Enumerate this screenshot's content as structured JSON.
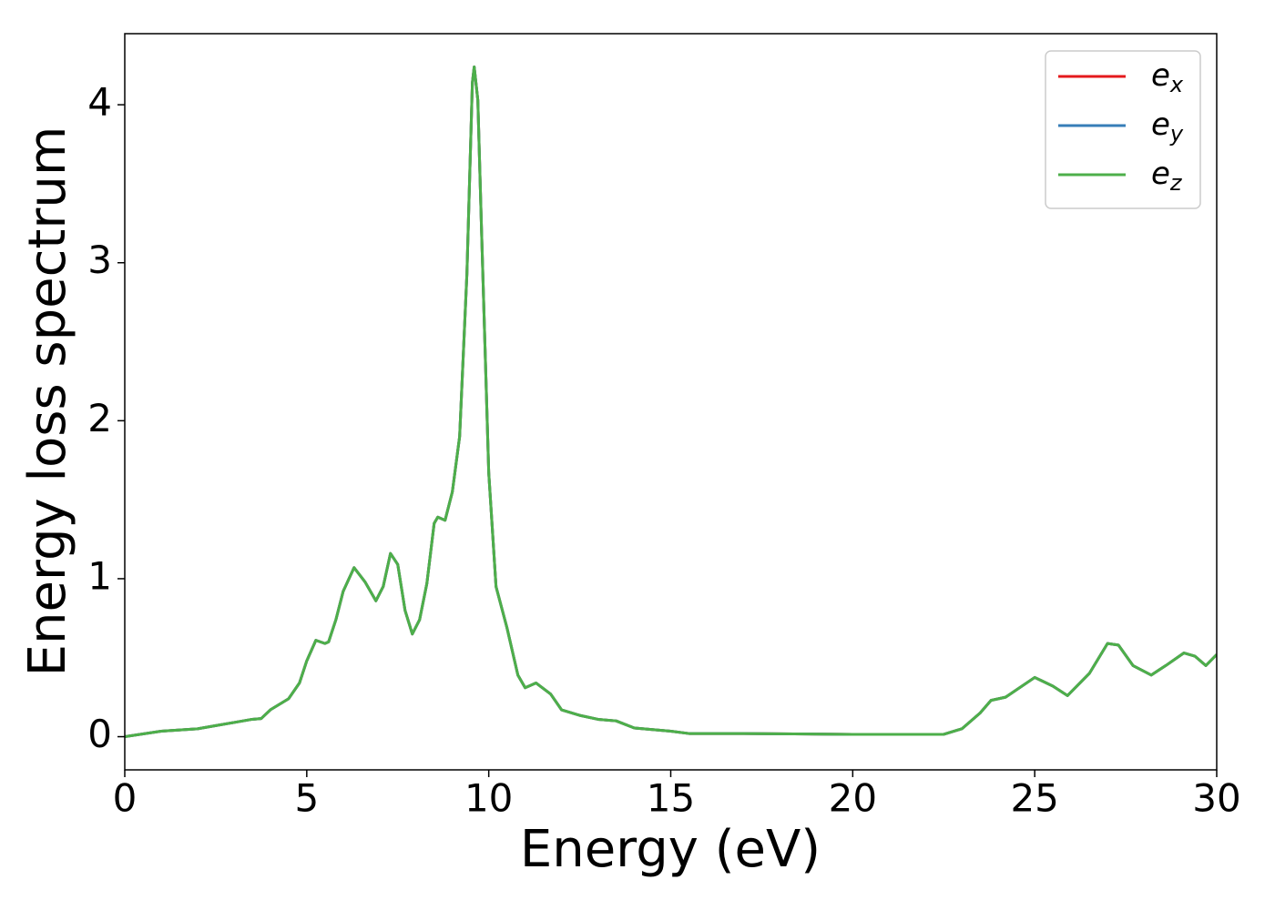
{
  "chart_data": {
    "type": "line",
    "xlabel": "Energy (eV)",
    "ylabel": "Energy loss spectrum",
    "x": [
      0,
      1,
      2,
      2.5,
      3,
      3.5,
      3.75,
      4,
      4.5,
      4.8,
      5,
      5.25,
      5.5,
      5.6,
      5.8,
      6,
      6.3,
      6.6,
      6.9,
      7.1,
      7.3,
      7.5,
      7.7,
      7.9,
      8.1,
      8.3,
      8.5,
      8.6,
      8.8,
      9,
      9.2,
      9.4,
      9.55,
      9.6,
      9.7,
      9.8,
      10,
      10.2,
      10.5,
      10.8,
      11,
      11.3,
      11.7,
      12,
      12.5,
      13,
      13.5,
      14,
      15,
      15.5,
      17,
      20,
      22.5,
      23,
      23.5,
      23.8,
      24.2,
      25,
      25.5,
      25.9,
      26.5,
      27,
      27.3,
      27.7,
      28.2,
      28.6,
      29.1,
      29.4,
      29.7,
      30
    ],
    "series": [
      {
        "name": "ex",
        "color": "#e41a1c",
        "values": [
          0,
          0.035,
          0.05,
          0.07,
          0.09,
          0.11,
          0.115,
          0.17,
          0.24,
          0.34,
          0.48,
          0.61,
          0.59,
          0.6,
          0.74,
          0.92,
          1.07,
          0.98,
          0.86,
          0.95,
          1.16,
          1.09,
          0.8,
          0.65,
          0.74,
          0.97,
          1.35,
          1.39,
          1.37,
          1.55,
          1.9,
          2.93,
          4.14,
          4.24,
          4.03,
          3.22,
          1.67,
          0.95,
          0.69,
          0.39,
          0.31,
          0.34,
          0.27,
          0.17,
          0.135,
          0.11,
          0.1,
          0.055,
          0.035,
          0.02,
          0.02,
          0.015,
          0.015,
          0.05,
          0.15,
          0.23,
          0.25,
          0.375,
          0.32,
          0.26,
          0.4,
          0.59,
          0.58,
          0.45,
          0.39,
          0.45,
          0.53,
          0.51,
          0.45,
          0.52
        ]
      },
      {
        "name": "ey",
        "color": "#377eb8",
        "values": [
          0,
          0.035,
          0.05,
          0.07,
          0.09,
          0.11,
          0.115,
          0.17,
          0.24,
          0.34,
          0.48,
          0.61,
          0.59,
          0.6,
          0.74,
          0.92,
          1.07,
          0.98,
          0.86,
          0.95,
          1.16,
          1.09,
          0.8,
          0.65,
          0.74,
          0.97,
          1.35,
          1.39,
          1.37,
          1.55,
          1.9,
          2.93,
          4.14,
          4.24,
          4.03,
          3.22,
          1.67,
          0.95,
          0.69,
          0.39,
          0.31,
          0.34,
          0.27,
          0.17,
          0.135,
          0.11,
          0.1,
          0.055,
          0.035,
          0.02,
          0.02,
          0.015,
          0.015,
          0.05,
          0.15,
          0.23,
          0.25,
          0.375,
          0.32,
          0.26,
          0.4,
          0.59,
          0.58,
          0.45,
          0.39,
          0.45,
          0.53,
          0.51,
          0.45,
          0.52
        ]
      },
      {
        "name": "ez",
        "color": "#4daf4a",
        "values": [
          0,
          0.035,
          0.05,
          0.07,
          0.09,
          0.11,
          0.115,
          0.17,
          0.24,
          0.34,
          0.48,
          0.61,
          0.59,
          0.6,
          0.74,
          0.92,
          1.07,
          0.98,
          0.86,
          0.95,
          1.16,
          1.09,
          0.8,
          0.65,
          0.74,
          0.97,
          1.35,
          1.39,
          1.37,
          1.55,
          1.9,
          2.93,
          4.14,
          4.24,
          4.03,
          3.22,
          1.67,
          0.95,
          0.69,
          0.39,
          0.31,
          0.34,
          0.27,
          0.17,
          0.135,
          0.11,
          0.1,
          0.055,
          0.035,
          0.02,
          0.02,
          0.015,
          0.015,
          0.05,
          0.15,
          0.23,
          0.25,
          0.375,
          0.32,
          0.26,
          0.4,
          0.59,
          0.58,
          0.45,
          0.39,
          0.45,
          0.53,
          0.51,
          0.45,
          0.52
        ]
      }
    ],
    "xlim": [
      0,
      30
    ],
    "xticks": [
      0,
      5,
      10,
      15,
      20,
      25,
      30
    ],
    "ylim": [
      -0.21,
      4.45
    ],
    "yticks": [
      0,
      1,
      2,
      3,
      4
    ],
    "grid": false,
    "legend": "upper right"
  }
}
